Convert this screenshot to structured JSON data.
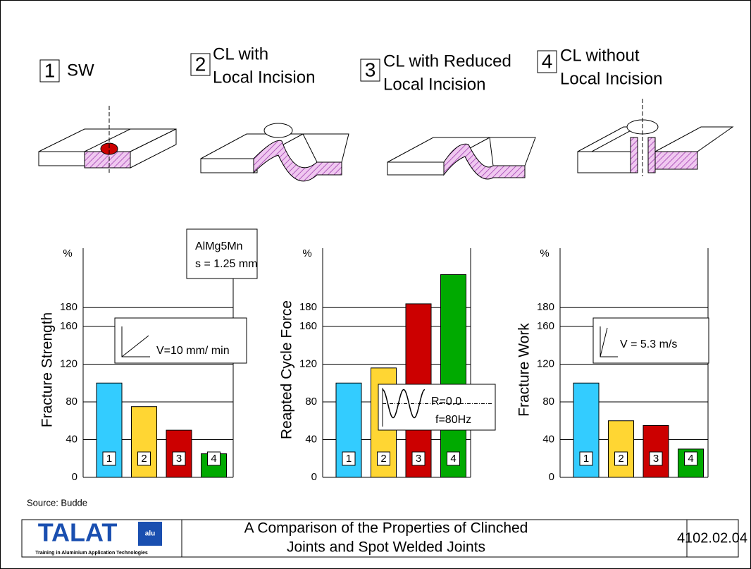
{
  "header": [
    {
      "number": "1",
      "lines": [
        "SW"
      ]
    },
    {
      "number": "2",
      "lines": [
        "CL with",
        "Local Incision"
      ]
    },
    {
      "number": "3",
      "lines": [
        "CL with Reduced",
        "Local Incision"
      ]
    },
    {
      "number": "4",
      "lines": [
        "CL without",
        "Local Incision"
      ]
    }
  ],
  "chart_data": [
    {
      "type": "bar",
      "y_label": "Fracture Strength",
      "y_unit": "%",
      "categories": [
        "1",
        "2",
        "3",
        "4"
      ],
      "values": [
        100,
        75,
        50,
        25
      ],
      "colors": [
        "#33ccff",
        "#ffd633",
        "#cc0000",
        "#00aa00"
      ],
      "ylim": [
        0,
        243
      ],
      "yticks": [
        0,
        40,
        80,
        120,
        160,
        180
      ],
      "grid": true,
      "annotations": [
        [
          "AlMg5Mn",
          "s = 1.25 mm"
        ],
        [
          "V=10 mm/ min"
        ]
      ]
    },
    {
      "type": "bar",
      "y_label": "Reapted Cycle Force",
      "y_unit": "%",
      "categories": [
        "1",
        "2",
        "3",
        "4"
      ],
      "values": [
        100,
        116,
        184,
        215
      ],
      "colors": [
        "#33ccff",
        "#ffd633",
        "#cc0000",
        "#00aa00"
      ],
      "ylim": [
        0,
        243
      ],
      "yticks": [
        0,
        40,
        80,
        120,
        160,
        180
      ],
      "grid": true,
      "annotations": [
        [
          "R=0.0",
          "f=80Hz"
        ]
      ]
    },
    {
      "type": "bar",
      "y_label": "Fracture Work",
      "y_unit": "%",
      "categories": [
        "1",
        "2",
        "3",
        "4"
      ],
      "values": [
        100,
        60,
        55,
        30
      ],
      "colors": [
        "#33ccff",
        "#ffd633",
        "#cc0000",
        "#00aa00"
      ],
      "ylim": [
        0,
        243
      ],
      "yticks": [
        0,
        40,
        80,
        120,
        160,
        180
      ],
      "grid": true,
      "annotations": [
        [
          "V = 5.3 m/s"
        ]
      ]
    }
  ],
  "source": "Source: Budde",
  "footer": {
    "logo": "TALAT",
    "logo_badge": "alu",
    "logo_tagline": "Training in Aluminium Application Technologies",
    "title": [
      "A Comparison of the Properties of Clinched",
      "Joints and Spot Welded Joints"
    ],
    "code": "4102.02.04"
  }
}
